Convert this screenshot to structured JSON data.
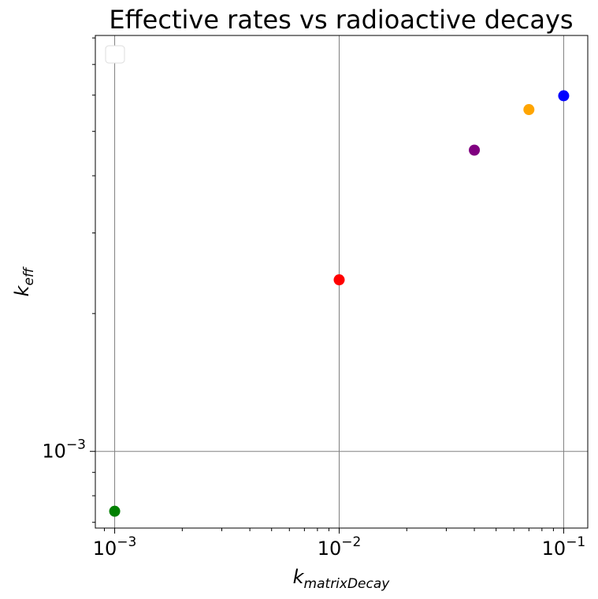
{
  "chart_data": {
    "type": "scatter",
    "title": "Effective rates vs radioactive decays",
    "x_scale": "log",
    "y_scale": "log",
    "xlim": [
      0.00082,
      0.128
    ],
    "ylim": [
      0.00068,
      0.0081
    ],
    "grid": true,
    "legend_position": "upper left",
    "xlabel": {
      "base": "k",
      "subscript": "matrixDecay"
    },
    "ylabel": {
      "base": "k",
      "subscript": "eff"
    },
    "x_ticks": [
      {
        "value": 0.001,
        "base": "10",
        "exp": "−3"
      },
      {
        "value": 0.01,
        "base": "10",
        "exp": "−2"
      },
      {
        "value": 0.1,
        "base": "10",
        "exp": "−1"
      }
    ],
    "y_ticks": [
      {
        "value": 0.001,
        "base": "10",
        "exp": "−3"
      }
    ],
    "points": [
      {
        "x": 0.001,
        "y": 0.00074,
        "color": "#008000"
      },
      {
        "x": 0.01,
        "y": 0.00237,
        "color": "#ff0000"
      },
      {
        "x": 0.04,
        "y": 0.00455,
        "color": "#800080"
      },
      {
        "x": 0.07,
        "y": 0.00558,
        "color": "#ffa500"
      },
      {
        "x": 0.1,
        "y": 0.00598,
        "color": "#0000ff"
      }
    ]
  }
}
